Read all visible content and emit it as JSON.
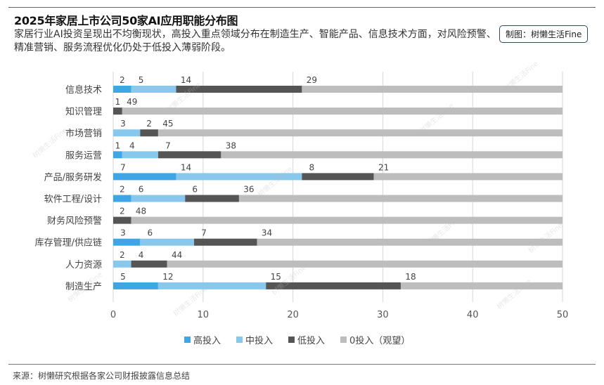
{
  "header": {
    "title": "2025年家居上市公司50家AI应用职能分布图",
    "subtitle": "家居行业AI投资呈现出不均衡现状，高投入重点领域分布在制造生产、智能产品、信息技术方面，对风险预警、精准营销、服务流程优化仍处于低投入薄弱阶段。",
    "credit": "制图：树懒生活Fine"
  },
  "footer": {
    "source": "来源：树懒研究根据各家公司财报披露信息总结"
  },
  "watermark_text": "树懒生活Fine",
  "colors": {
    "high": "#3ea6e6",
    "mid": "#88c8ec",
    "low": "#555555",
    "zero": "#bdbdbd",
    "grid": "#d6d6d6"
  },
  "chart_data": {
    "type": "bar",
    "orientation": "horizontal",
    "stacked": true,
    "title": "2025年家居上市公司50家AI应用职能分布图",
    "xlabel": "",
    "ylabel": "",
    "xlim": [
      0,
      50
    ],
    "xticks": [
      0,
      10,
      20,
      30,
      40,
      50
    ],
    "grid": true,
    "legend_position": "bottom-center",
    "categories": [
      "信息技术",
      "知识管理",
      "市场营销",
      "服务运营",
      "产品/服务研发",
      "软件工程/设计",
      "财务风险预警",
      "库存管理/供应链",
      "人力资源",
      "制造生产"
    ],
    "series": [
      {
        "name": "高投入",
        "key": "high",
        "values": [
          2,
          0,
          0,
          1,
          7,
          2,
          0,
          3,
          0,
          5
        ]
      },
      {
        "name": "中投入",
        "key": "mid",
        "values": [
          5,
          0,
          3,
          4,
          14,
          6,
          0,
          6,
          2,
          12
        ]
      },
      {
        "name": "低投入",
        "key": "low",
        "values": [
          14,
          1,
          2,
          7,
          8,
          6,
          2,
          7,
          4,
          15
        ]
      },
      {
        "name": "0投入（观望）",
        "key": "zero",
        "values": [
          29,
          49,
          45,
          38,
          21,
          36,
          48,
          34,
          44,
          18
        ]
      }
    ]
  }
}
